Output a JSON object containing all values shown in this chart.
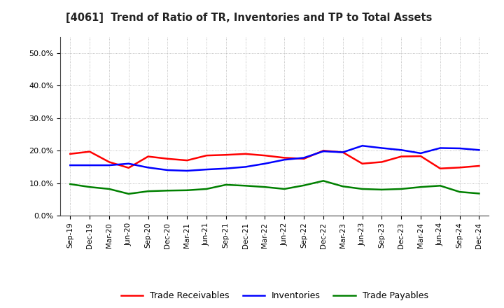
{
  "title": "[4061]  Trend of Ratio of TR, Inventories and TP to Total Assets",
  "x_labels": [
    "Sep-19",
    "Dec-19",
    "Mar-20",
    "Jun-20",
    "Sep-20",
    "Dec-20",
    "Mar-21",
    "Jun-21",
    "Sep-21",
    "Dec-21",
    "Mar-22",
    "Jun-22",
    "Sep-22",
    "Dec-22",
    "Mar-23",
    "Jun-23",
    "Sep-23",
    "Dec-23",
    "Mar-24",
    "Jun-24",
    "Sep-24",
    "Dec-24"
  ],
  "trade_receivables": [
    0.19,
    0.197,
    0.165,
    0.147,
    0.182,
    0.175,
    0.17,
    0.185,
    0.187,
    0.19,
    0.185,
    0.178,
    0.175,
    0.2,
    0.195,
    0.16,
    0.165,
    0.182,
    0.183,
    0.145,
    0.148,
    0.153
  ],
  "inventories": [
    0.155,
    0.155,
    0.155,
    0.16,
    0.148,
    0.14,
    0.138,
    0.142,
    0.145,
    0.15,
    0.16,
    0.172,
    0.178,
    0.198,
    0.195,
    0.215,
    0.208,
    0.202,
    0.192,
    0.208,
    0.207,
    0.202
  ],
  "trade_payables": [
    0.097,
    0.088,
    0.082,
    0.067,
    0.075,
    0.077,
    0.078,
    0.082,
    0.095,
    0.092,
    0.088,
    0.082,
    0.093,
    0.107,
    0.09,
    0.082,
    0.08,
    0.082,
    0.088,
    0.092,
    0.073,
    0.068
  ],
  "tr_color": "#FF0000",
  "inv_color": "#0000FF",
  "tp_color": "#008000",
  "ylim": [
    0.0,
    0.55
  ],
  "yticks": [
    0.0,
    0.1,
    0.2,
    0.3,
    0.4,
    0.5
  ],
  "background_color": "#FFFFFF",
  "plot_bg_color": "#FFFFFF",
  "grid_color": "#AAAAAA",
  "legend_labels": [
    "Trade Receivables",
    "Inventories",
    "Trade Payables"
  ]
}
